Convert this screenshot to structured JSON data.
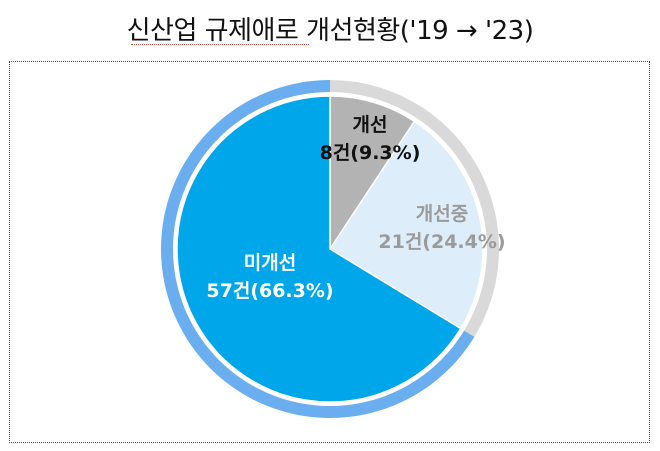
{
  "chart_data": {
    "type": "pie",
    "title": "신산업 규제애로 개선현황('19 → '23)",
    "slices": [
      {
        "name": "개선",
        "label": "8건(9.3%)",
        "count": 8,
        "percent": 9.3,
        "color": "#b3b3b3",
        "ring_color": "#d9d9d9",
        "text_color": "#111111"
      },
      {
        "name": "개선중",
        "label": "21건(24.4%)",
        "count": 21,
        "percent": 24.4,
        "color": "#ddeefa",
        "ring_color": "#d9d9d9",
        "text_color": "#9a9a9a"
      },
      {
        "name": "미개선",
        "label": "57건(66.3%)",
        "count": 57,
        "percent": 66.3,
        "color": "#00a6ea",
        "ring_color": "#6aaef0",
        "text_color": "#ffffff"
      }
    ]
  }
}
